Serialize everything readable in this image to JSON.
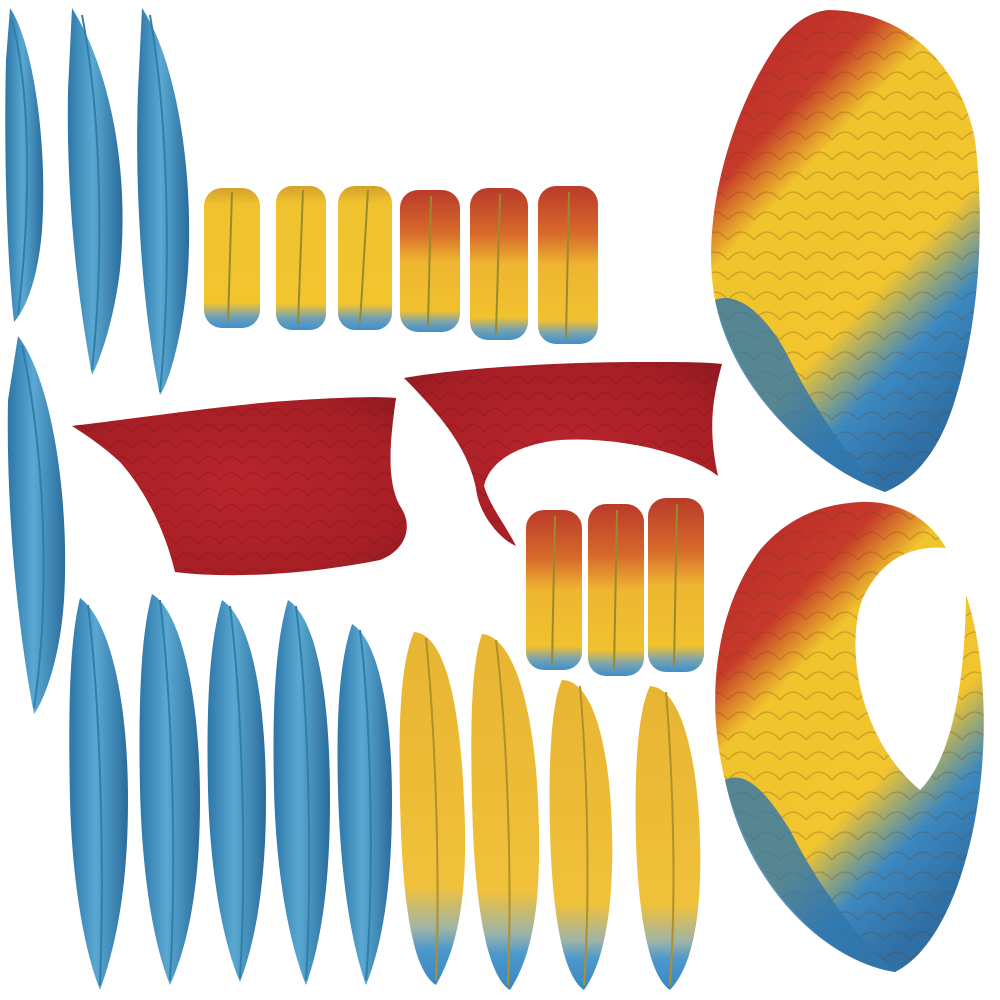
{
  "texture_sheet": {
    "background": "#ffffff",
    "colors": {
      "blue_light": "#5aa6cf",
      "blue_mid": "#3c8ec2",
      "blue_dark": "#2a6f9f",
      "blue_shaft": "#2f7fa8",
      "yellow": "#f2c02e",
      "yellow_dark": "#d9a21d",
      "yellow_shaft": "#9a8a2e",
      "red": "#b32128",
      "red_dark": "#8e1a20",
      "orange": "#d9652a",
      "tip_blue": "#3f8fc9"
    },
    "pieces": [
      {
        "name": "blue-feather-top-1",
        "kind": "blue-long"
      },
      {
        "name": "blue-feather-top-2",
        "kind": "blue-long"
      },
      {
        "name": "blue-feather-top-3",
        "kind": "blue-long"
      },
      {
        "name": "yellow-feather-short-1",
        "kind": "yellow-short"
      },
      {
        "name": "yellow-feather-short-2",
        "kind": "yellow-short"
      },
      {
        "name": "yellow-feather-short-3",
        "kind": "yellow-short"
      },
      {
        "name": "mixed-feather-short-1",
        "kind": "mixed-short"
      },
      {
        "name": "mixed-feather-short-2",
        "kind": "mixed-short"
      },
      {
        "name": "mixed-feather-short-3",
        "kind": "mixed-short"
      },
      {
        "name": "blue-feather-left",
        "kind": "blue-long"
      },
      {
        "name": "red-patch-left",
        "kind": "red-patch"
      },
      {
        "name": "red-patch-right",
        "kind": "red-patch"
      },
      {
        "name": "mixed-feather-mid-1",
        "kind": "mixed-short"
      },
      {
        "name": "mixed-feather-mid-2",
        "kind": "mixed-short"
      },
      {
        "name": "mixed-feather-mid-3",
        "kind": "mixed-short"
      },
      {
        "name": "blue-feather-bottom-1",
        "kind": "blue-long"
      },
      {
        "name": "blue-feather-bottom-2",
        "kind": "blue-long"
      },
      {
        "name": "blue-feather-bottom-3",
        "kind": "blue-long"
      },
      {
        "name": "blue-feather-bottom-4",
        "kind": "blue-long"
      },
      {
        "name": "blue-feather-bottom-5",
        "kind": "blue-long"
      },
      {
        "name": "yellow-feather-long-1",
        "kind": "yellow-long"
      },
      {
        "name": "yellow-feather-long-2",
        "kind": "yellow-long"
      },
      {
        "name": "yellow-feather-long-3",
        "kind": "yellow-long"
      },
      {
        "name": "yellow-feather-long-4",
        "kind": "yellow-long"
      },
      {
        "name": "wing-top",
        "kind": "wing"
      },
      {
        "name": "wing-bottom",
        "kind": "wing"
      }
    ]
  }
}
